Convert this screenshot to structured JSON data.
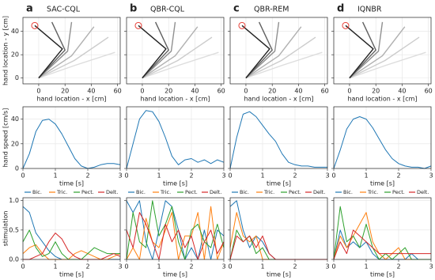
{
  "chart_data": [
    {
      "type": "line",
      "panel_label": "a",
      "title": "SAC-CQL",
      "xlabel": "hand location - x [cm]",
      "ylabel": "hand location - y [cm]",
      "xlim": [
        -12,
        62
      ],
      "ylim": [
        -5,
        52
      ],
      "xticks": [
        0,
        20,
        40,
        60
      ],
      "yticks": [
        0,
        20,
        40
      ],
      "grid": true,
      "target": {
        "x": -3,
        "y": 45,
        "color": "#e8423a"
      },
      "series": [
        {
          "x": [
            0,
            28,
            58
          ],
          "y": [
            0,
            11,
            22
          ],
          "color": "#dddddd"
        },
        {
          "x": [
            0,
            27,
            53
          ],
          "y": [
            0,
            15,
            35
          ],
          "color": "#cccccc"
        },
        {
          "x": [
            0,
            25,
            42
          ],
          "y": [
            0,
            19,
            44
          ],
          "color": "#b0b0b0"
        },
        {
          "x": [
            0,
            22,
            25
          ],
          "y": [
            0,
            23,
            48
          ],
          "color": "#909090"
        },
        {
          "x": [
            0,
            20,
            10
          ],
          "y": [
            0,
            24,
            48
          ],
          "color": "#606060"
        },
        {
          "x": [
            0,
            18,
            -3
          ],
          "y": [
            0,
            25,
            45
          ],
          "color": "#222222"
        }
      ]
    },
    {
      "type": "line",
      "panel_label": "b",
      "title": "QBR-CQL",
      "xlabel": "hand location - x [cm]",
      "xlim": [
        -12,
        62
      ],
      "ylim": [
        -5,
        52
      ],
      "xticks": [
        0,
        20,
        40,
        60
      ],
      "yticks": [
        0,
        20,
        40
      ],
      "grid": true,
      "show_ytick_labels": false,
      "target": {
        "x": -3,
        "y": 45,
        "color": "#e8423a"
      },
      "series": [
        {
          "x": [
            0,
            28,
            58
          ],
          "y": [
            0,
            11,
            22
          ],
          "color": "#dddddd"
        },
        {
          "x": [
            0,
            27,
            53
          ],
          "y": [
            0,
            15,
            35
          ],
          "color": "#cccccc"
        },
        {
          "x": [
            0,
            25,
            42
          ],
          "y": [
            0,
            19,
            44
          ],
          "color": "#b0b0b0"
        },
        {
          "x": [
            0,
            22,
            25
          ],
          "y": [
            0,
            23,
            48
          ],
          "color": "#909090"
        },
        {
          "x": [
            0,
            20,
            10
          ],
          "y": [
            0,
            24,
            48
          ],
          "color": "#606060"
        },
        {
          "x": [
            0,
            18,
            -3
          ],
          "y": [
            0,
            25,
            45
          ],
          "color": "#222222"
        }
      ]
    },
    {
      "type": "line",
      "panel_label": "c",
      "title": "QBR-REM",
      "xlabel": "hand location - x [cm]",
      "xlim": [
        -12,
        62
      ],
      "ylim": [
        -5,
        52
      ],
      "xticks": [
        0,
        20,
        40,
        60
      ],
      "yticks": [
        0,
        20,
        40
      ],
      "grid": true,
      "show_ytick_labels": false,
      "target": {
        "x": -3,
        "y": 45,
        "color": "#e8423a"
      },
      "series": [
        {
          "x": [
            0,
            28,
            58
          ],
          "y": [
            0,
            11,
            22
          ],
          "color": "#dddddd"
        },
        {
          "x": [
            0,
            27,
            53
          ],
          "y": [
            0,
            15,
            35
          ],
          "color": "#cccccc"
        },
        {
          "x": [
            0,
            25,
            42
          ],
          "y": [
            0,
            19,
            44
          ],
          "color": "#b0b0b0"
        },
        {
          "x": [
            0,
            22,
            25
          ],
          "y": [
            0,
            23,
            48
          ],
          "color": "#909090"
        },
        {
          "x": [
            0,
            20,
            10
          ],
          "y": [
            0,
            24,
            48
          ],
          "color": "#606060"
        },
        {
          "x": [
            0,
            18,
            -3
          ],
          "y": [
            0,
            25,
            45
          ],
          "color": "#222222"
        }
      ]
    },
    {
      "type": "line",
      "panel_label": "d",
      "title": "IQNBR",
      "xlabel": "hand location - x [cm]",
      "xlim": [
        -12,
        62
      ],
      "ylim": [
        -5,
        52
      ],
      "xticks": [
        0,
        20,
        40,
        60
      ],
      "yticks": [
        0,
        20,
        40
      ],
      "grid": true,
      "show_ytick_labels": false,
      "target": {
        "x": -3,
        "y": 45,
        "color": "#e8423a"
      },
      "series": [
        {
          "x": [
            0,
            28,
            58
          ],
          "y": [
            0,
            11,
            22
          ],
          "color": "#dddddd"
        },
        {
          "x": [
            0,
            27,
            53
          ],
          "y": [
            0,
            15,
            35
          ],
          "color": "#cccccc"
        },
        {
          "x": [
            0,
            25,
            42
          ],
          "y": [
            0,
            19,
            44
          ],
          "color": "#b0b0b0"
        },
        {
          "x": [
            0,
            22,
            25
          ],
          "y": [
            0,
            23,
            48
          ],
          "color": "#909090"
        },
        {
          "x": [
            0,
            20,
            10
          ],
          "y": [
            0,
            24,
            48
          ],
          "color": "#606060"
        },
        {
          "x": [
            0,
            18,
            -3
          ],
          "y": [
            0,
            25,
            45
          ],
          "color": "#222222"
        }
      ]
    },
    {
      "type": "line",
      "xlabel": "time [s]",
      "ylabel": "hand speed [cm/s]",
      "xlim": [
        0,
        3
      ],
      "ylim": [
        0,
        50
      ],
      "xticks": [
        0,
        1,
        2,
        3
      ],
      "yticks": [
        0,
        20,
        40
      ],
      "grid": true,
      "x": [
        0,
        0.2,
        0.4,
        0.6,
        0.8,
        1.0,
        1.2,
        1.4,
        1.6,
        1.8,
        2.0,
        2.2,
        2.4,
        2.6,
        2.8,
        3.0
      ],
      "series": [
        {
          "color": "#1f77b4",
          "values": [
            0,
            12,
            30,
            39,
            40,
            36,
            28,
            18,
            8,
            2,
            0,
            1,
            3,
            4,
            4,
            3
          ]
        }
      ]
    },
    {
      "type": "line",
      "xlabel": "time [s]",
      "xlim": [
        0,
        3
      ],
      "ylim": [
        0,
        50
      ],
      "xticks": [
        0,
        1,
        2,
        3
      ],
      "yticks": [
        0,
        20,
        40
      ],
      "grid": true,
      "show_ytick_labels": false,
      "x": [
        0,
        0.2,
        0.4,
        0.6,
        0.8,
        1.0,
        1.2,
        1.4,
        1.6,
        1.8,
        2.0,
        2.2,
        2.4,
        2.6,
        2.8,
        3.0
      ],
      "series": [
        {
          "color": "#1f77b4",
          "values": [
            0,
            20,
            40,
            47,
            46,
            38,
            25,
            10,
            3,
            7,
            8,
            5,
            7,
            4,
            7,
            5
          ]
        }
      ]
    },
    {
      "type": "line",
      "xlabel": "time [s]",
      "xlim": [
        0,
        3
      ],
      "ylim": [
        0,
        50
      ],
      "xticks": [
        0,
        1,
        2,
        3
      ],
      "yticks": [
        0,
        20,
        40
      ],
      "grid": true,
      "show_ytick_labels": false,
      "x": [
        0,
        0.2,
        0.4,
        0.6,
        0.8,
        1.0,
        1.2,
        1.4,
        1.6,
        1.8,
        2.0,
        2.2,
        2.4,
        2.6,
        2.8,
        3.0
      ],
      "series": [
        {
          "color": "#1f77b4",
          "values": [
            0,
            25,
            44,
            46,
            42,
            35,
            28,
            22,
            12,
            5,
            3,
            2,
            2,
            1,
            1,
            1
          ]
        }
      ]
    },
    {
      "type": "line",
      "xlabel": "time [s]",
      "xlim": [
        0,
        3
      ],
      "ylim": [
        0,
        50
      ],
      "xticks": [
        0,
        1,
        2,
        3
      ],
      "yticks": [
        0,
        20,
        40
      ],
      "grid": true,
      "show_ytick_labels": false,
      "x": [
        0,
        0.2,
        0.4,
        0.6,
        0.8,
        1.0,
        1.2,
        1.4,
        1.6,
        1.8,
        2.0,
        2.2,
        2.4,
        2.6,
        2.8,
        3.0
      ],
      "series": [
        {
          "color": "#1f77b4",
          "values": [
            0,
            15,
            32,
            40,
            42,
            40,
            33,
            24,
            15,
            8,
            4,
            2,
            1,
            1,
            0,
            2
          ]
        }
      ]
    },
    {
      "type": "line",
      "xlabel": "time [s]",
      "ylabel": "stimulation",
      "xlim": [
        0,
        3
      ],
      "ylim": [
        0,
        1.05
      ],
      "xticks": [
        0,
        1,
        2,
        3
      ],
      "yticks": [
        {
          "value": 0,
          "label": "0.0"
        },
        {
          "value": 0.5,
          "label": "0.5"
        },
        {
          "value": 1,
          "label": "1.0"
        }
      ],
      "grid": true,
      "x": [
        0,
        0.2,
        0.4,
        0.6,
        0.8,
        1.0,
        1.2,
        1.4,
        1.6,
        1.8,
        2.0,
        2.2,
        2.4,
        2.6,
        2.8,
        3.0
      ],
      "series": [
        {
          "name": "Bic.",
          "color": "#1f77b4",
          "values": [
            0.9,
            0.8,
            0.45,
            0.3,
            0.15,
            0.05,
            0,
            0,
            0,
            0,
            0,
            0,
            0,
            0,
            0,
            0
          ]
        },
        {
          "name": "Tric.",
          "color": "#ff7f0e",
          "values": [
            0.1,
            0.2,
            0.25,
            0.1,
            0,
            0,
            0,
            0,
            0.1,
            0.15,
            0.1,
            0.05,
            0,
            0,
            0.05,
            0.1
          ]
        },
        {
          "name": "Pect.",
          "color": "#2ca02c",
          "values": [
            0.3,
            0.5,
            0.2,
            0.05,
            0.1,
            0.3,
            0.1,
            0,
            0,
            0,
            0.1,
            0.2,
            0.15,
            0.1,
            0.1,
            0.1
          ]
        },
        {
          "name": "Delt.",
          "color": "#d62728",
          "values": [
            0,
            0,
            0.05,
            0.1,
            0.3,
            0.45,
            0.35,
            0.15,
            0.05,
            0,
            0,
            0,
            0,
            0.05,
            0.1,
            0.05
          ]
        }
      ]
    },
    {
      "type": "line",
      "xlabel": "time [s]",
      "xlim": [
        0,
        3
      ],
      "ylim": [
        0,
        1.05
      ],
      "xticks": [
        0,
        1,
        2,
        3
      ],
      "yticks": [
        {
          "value": 0,
          "label": "0.0"
        },
        {
          "value": 0.5,
          "label": "0.5"
        },
        {
          "value": 1,
          "label": "1.0"
        }
      ],
      "grid": true,
      "show_ytick_labels": false,
      "x": [
        0,
        0.2,
        0.4,
        0.6,
        0.8,
        1.0,
        1.2,
        1.4,
        1.6,
        1.8,
        2.0,
        2.2,
        2.4,
        2.6,
        2.8,
        3.0
      ],
      "series": [
        {
          "name": "Bic.",
          "color": "#1f77b4",
          "values": [
            1,
            0.8,
            1,
            0.3,
            0,
            0.5,
            1,
            0.9,
            0.5,
            0,
            0.2,
            0,
            0.5,
            0,
            0.5,
            0.4
          ]
        },
        {
          "name": "Tric.",
          "color": "#ff7f0e",
          "values": [
            0,
            0.2,
            0,
            0.7,
            0.3,
            0.2,
            0.5,
            0.8,
            0,
            0.4,
            0.4,
            0.8,
            0,
            0.9,
            0,
            0.3
          ]
        },
        {
          "name": "Pect.",
          "color": "#2ca02c",
          "values": [
            0,
            0.8,
            0.3,
            0.2,
            1,
            0.4,
            0.6,
            0.9,
            0.3,
            0,
            0.5,
            0.6,
            0.3,
            0.2,
            0.6,
            0.2
          ]
        },
        {
          "name": "Delt.",
          "color": "#d62728",
          "values": [
            0.5,
            0.2,
            0.8,
            0.6,
            0.3,
            0,
            0.6,
            0.3,
            0.5,
            0.2,
            0.4,
            0,
            0.3,
            0.5,
            0.1,
            0.3
          ]
        }
      ]
    },
    {
      "type": "line",
      "xlabel": "time [s]",
      "xlim": [
        0,
        3
      ],
      "ylim": [
        0,
        1.05
      ],
      "xticks": [
        0,
        1,
        2,
        3
      ],
      "yticks": [
        {
          "value": 0,
          "label": "0.0"
        },
        {
          "value": 0.5,
          "label": "0.5"
        },
        {
          "value": 1,
          "label": "1.0"
        }
      ],
      "grid": true,
      "show_ytick_labels": false,
      "x": [
        0,
        0.2,
        0.4,
        0.6,
        0.8,
        1.0,
        1.2,
        1.4,
        1.6,
        1.8,
        2.0,
        2.2,
        2.4,
        2.6,
        2.8,
        3.0
      ],
      "series": [
        {
          "name": "Bic.",
          "color": "#1f77b4",
          "values": [
            0.9,
            1,
            0.5,
            0.2,
            0.4,
            0.3,
            0.1,
            0,
            0,
            0,
            0,
            0,
            0,
            0,
            0,
            0
          ]
        },
        {
          "name": "Tric.",
          "color": "#ff7f0e",
          "values": [
            0.2,
            0.8,
            0.4,
            0.3,
            0.4,
            0,
            0,
            0,
            0,
            0,
            0,
            0,
            0,
            0,
            0,
            0
          ]
        },
        {
          "name": "Pect.",
          "color": "#2ca02c",
          "values": [
            0,
            0.5,
            0.3,
            0.4,
            0.1,
            0.2,
            0,
            0,
            0,
            0,
            0,
            0,
            0,
            0,
            0,
            0
          ]
        },
        {
          "name": "Delt.",
          "color": "#d62728",
          "values": [
            0,
            0.4,
            0.3,
            0.4,
            0.2,
            0.4,
            0.1,
            0,
            0,
            0,
            0,
            0,
            0,
            0,
            0,
            0
          ]
        }
      ]
    },
    {
      "type": "line",
      "xlabel": "time [s]",
      "xlim": [
        0,
        3
      ],
      "ylim": [
        0,
        1.05
      ],
      "xticks": [
        0,
        1,
        2,
        3
      ],
      "yticks": [
        {
          "value": 0,
          "label": "0.0"
        },
        {
          "value": 0.5,
          "label": "0.5"
        },
        {
          "value": 1,
          "label": "1.0"
        }
      ],
      "grid": true,
      "show_ytick_labels": false,
      "x": [
        0,
        0.2,
        0.4,
        0.6,
        0.8,
        1.0,
        1.2,
        1.4,
        1.6,
        1.8,
        2.0,
        2.2,
        2.4,
        2.6,
        2.8,
        3.0
      ],
      "series": [
        {
          "name": "Bic.",
          "color": "#1f77b4",
          "values": [
            0,
            0.5,
            0.2,
            0.3,
            0.2,
            0.3,
            0.1,
            0,
            0,
            0,
            0,
            0,
            0.1,
            0,
            0,
            0
          ]
        },
        {
          "name": "Tric.",
          "color": "#ff7f0e",
          "values": [
            0,
            0.4,
            0.2,
            0.4,
            0.6,
            0.8,
            0.3,
            0.1,
            0,
            0.1,
            0.2,
            0,
            0,
            0,
            0,
            0
          ]
        },
        {
          "name": "Pect.",
          "color": "#2ca02c",
          "values": [
            0,
            0.9,
            0.3,
            0.4,
            0.2,
            0.6,
            0.2,
            0,
            0.1,
            0,
            0.1,
            0.2,
            0,
            0,
            0,
            0
          ]
        },
        {
          "name": "Delt.",
          "color": "#d62728",
          "values": [
            0,
            0.3,
            0.1,
            0.5,
            0.4,
            0.3,
            0.2,
            0.1,
            0.1,
            0.1,
            0.1,
            0.1,
            0.1,
            0.1,
            0.1,
            0.1
          ]
        }
      ]
    }
  ]
}
